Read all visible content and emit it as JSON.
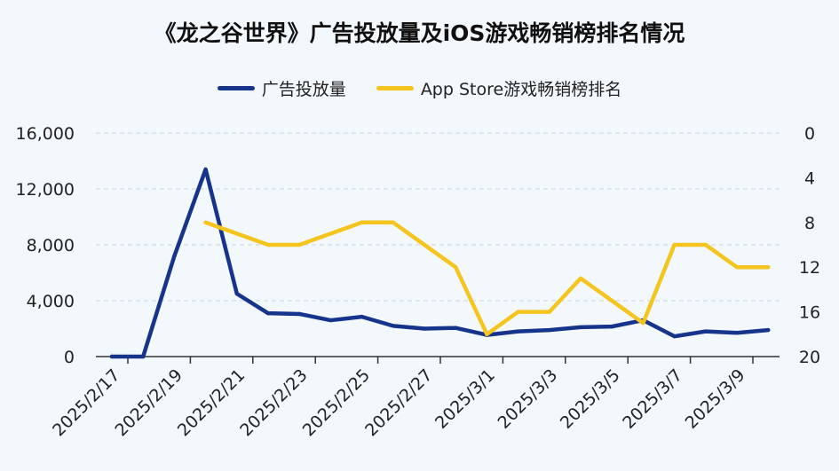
{
  "chart_data": {
    "type": "line",
    "title": "《龙之谷世界》广告投放量及iOS游戏畅销榜排名情况",
    "x": [
      "2025/2/17",
      "2025/2/18",
      "2025/2/19",
      "2025/2/20",
      "2025/2/21",
      "2025/2/22",
      "2025/2/23",
      "2025/2/24",
      "2025/2/25",
      "2025/2/26",
      "2025/2/27",
      "2025/2/28",
      "2025/3/1",
      "2025/3/2",
      "2025/3/3",
      "2025/3/4",
      "2025/3/5",
      "2025/3/6",
      "2025/3/7",
      "2025/3/8",
      "2025/3/9",
      "2025/3/10"
    ],
    "x_tick_labels": [
      "2025/2/17",
      "2025/2/19",
      "2025/2/21",
      "2025/2/23",
      "2025/2/25",
      "2025/2/27",
      "2025/3/1",
      "2025/3/3",
      "2025/3/5",
      "2025/3/7",
      "2025/3/9"
    ],
    "y_left": {
      "ylim": [
        0,
        16000
      ],
      "ticks": [
        "0",
        "4,000",
        "8,000",
        "12,000",
        "16,000"
      ]
    },
    "y_right": {
      "ylim": [
        0,
        20
      ],
      "inverted": true,
      "ticks": [
        "0",
        "4",
        "8",
        "12",
        "16",
        "20"
      ]
    },
    "grid": "horizontal-dashed",
    "legend_position": "top-center",
    "series": [
      {
        "name": "广告投放量",
        "axis": "left",
        "color": "#17348c",
        "values": [
          0,
          0,
          7200,
          13400,
          4500,
          3100,
          3050,
          2600,
          2850,
          2200,
          2000,
          2050,
          1550,
          1800,
          1900,
          2100,
          2150,
          2600,
          1450,
          1800,
          1700,
          1900
        ]
      },
      {
        "name": "App Store游戏畅销榜排名",
        "axis": "right",
        "color": "#f4c51e",
        "values": [
          null,
          null,
          null,
          8,
          9,
          10,
          10,
          9,
          8,
          8,
          10,
          12,
          18,
          16,
          16,
          13,
          15,
          17,
          10,
          10,
          12,
          12
        ]
      }
    ]
  }
}
